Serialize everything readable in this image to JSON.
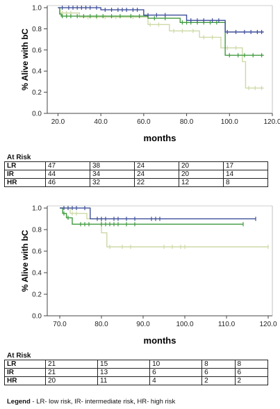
{
  "legend": {
    "label": "Legend",
    "text": " -  LR- low risk, IR- intermediate risk, HR- high risk"
  },
  "series_colors": {
    "LR": "#3e4f9a",
    "IR": "#3f9a3f",
    "HR": "#cdd9a6"
  },
  "chart_data": [
    {
      "type": "line",
      "title": "",
      "xlabel": "months",
      "ylabel": "% Alive with bC",
      "xlim": [
        15,
        120
      ],
      "ylim": [
        0,
        1.02
      ],
      "xticks": [
        "20.0",
        "40.0",
        "60.0",
        "80.0",
        "100.0",
        "120.0"
      ],
      "yticks": [
        "0.0",
        "0.2",
        "0.4",
        "0.6",
        "0.8",
        "1.0"
      ],
      "series": [
        {
          "key": "LR",
          "steps": [
            [
              20,
              1.0
            ],
            [
              22,
              1.0
            ],
            [
              40,
              0.98
            ],
            [
              60,
              0.93
            ],
            [
              80,
              0.88
            ],
            [
              98,
              0.77
            ],
            [
              116,
              0.77
            ]
          ],
          "censors": [
            22,
            25,
            27,
            29,
            31,
            33,
            35,
            38,
            42,
            45,
            48,
            50,
            52,
            55,
            57,
            62,
            66,
            70,
            82,
            85,
            88,
            92,
            95,
            99,
            103,
            107,
            110,
            113,
            115
          ]
        },
        {
          "key": "IR",
          "steps": [
            [
              20,
              1.0
            ],
            [
              20.8,
              0.94
            ],
            [
              21.5,
              0.92
            ],
            [
              62,
              0.9
            ],
            [
              77,
              0.86
            ],
            [
              98,
              0.55
            ],
            [
              116,
              0.55
            ]
          ],
          "censors": [
            22,
            24,
            26,
            29,
            32,
            35,
            38,
            41,
            45,
            49,
            54,
            58,
            65,
            70,
            78,
            80,
            82,
            85,
            88,
            91,
            94,
            100,
            104,
            107,
            111,
            115
          ]
        },
        {
          "key": "HR",
          "steps": [
            [
              20,
              1.0
            ],
            [
              21,
              0.95
            ],
            [
              30,
              0.91
            ],
            [
              62,
              0.84
            ],
            [
              72,
              0.78
            ],
            [
              86,
              0.72
            ],
            [
              96,
              0.62
            ],
            [
              106,
              0.49
            ],
            [
              107.5,
              0.24
            ],
            [
              116,
              0.24
            ]
          ],
          "censors": [
            22,
            24,
            26,
            34,
            38,
            42,
            47,
            55,
            63,
            67,
            74,
            78,
            83,
            88,
            92,
            99,
            103,
            109,
            112,
            115
          ]
        }
      ],
      "at_risk": {
        "title": "At Risk",
        "rows": [
          {
            "label": "LR",
            "values": [
              "47",
              "38",
              "24",
              "20",
              "17"
            ]
          },
          {
            "label": "IR",
            "values": [
              "44",
              "34",
              "24",
              "20",
              "14"
            ]
          },
          {
            "label": "HR",
            "values": [
              "46",
              "32",
              "22",
              "12",
              "8"
            ]
          }
        ]
      }
    },
    {
      "type": "line",
      "title": "",
      "xlabel": "months",
      "ylabel": "% Alive with bC",
      "xlim": [
        67,
        121
      ],
      "ylim": [
        0,
        1.02
      ],
      "xticks": [
        "70.0",
        "80.0",
        "90.0",
        "100.0",
        "110.0",
        "120.0"
      ],
      "yticks": [
        "0.0",
        "0.2",
        "0.4",
        "0.6",
        "0.8",
        "1.0"
      ],
      "series": [
        {
          "key": "LR",
          "steps": [
            [
              70,
              1.0
            ],
            [
              77,
              1.0
            ],
            [
              77.3,
              0.9
            ],
            [
              117,
              0.9
            ]
          ],
          "censors": [
            71,
            72,
            73,
            74,
            76,
            79,
            80,
            81,
            83,
            84,
            86,
            88,
            92,
            93,
            94,
            117
          ]
        },
        {
          "key": "IR",
          "steps": [
            [
              70,
              1.0
            ],
            [
              70.7,
              0.95
            ],
            [
              71.6,
              0.91
            ],
            [
              73,
              0.85
            ],
            [
              114,
              0.85
            ]
          ],
          "censors": [
            71,
            72,
            75,
            76,
            77,
            80,
            81,
            82,
            83,
            84,
            86,
            88,
            114
          ]
        },
        {
          "key": "HR",
          "steps": [
            [
              70,
              1.0
            ],
            [
              72.5,
              0.95
            ],
            [
              76.5,
              0.9
            ],
            [
              80,
              0.77
            ],
            [
              81.3,
              0.64
            ],
            [
              120,
              0.64
            ]
          ],
          "censors": [
            71,
            72,
            73,
            74,
            82,
            85,
            87,
            95,
            97,
            99,
            100,
            120
          ]
        }
      ],
      "at_risk": {
        "title": "At Risk",
        "rows": [
          {
            "label": "LR",
            "values": [
              "21",
              "15",
              "10",
              "8",
              "8"
            ]
          },
          {
            "label": "IR",
            "values": [
              "21",
              "13",
              "6",
              "6",
              "6"
            ]
          },
          {
            "label": "HR",
            "values": [
              "20",
              "11",
              "4",
              "2",
              "2"
            ]
          }
        ]
      }
    }
  ]
}
